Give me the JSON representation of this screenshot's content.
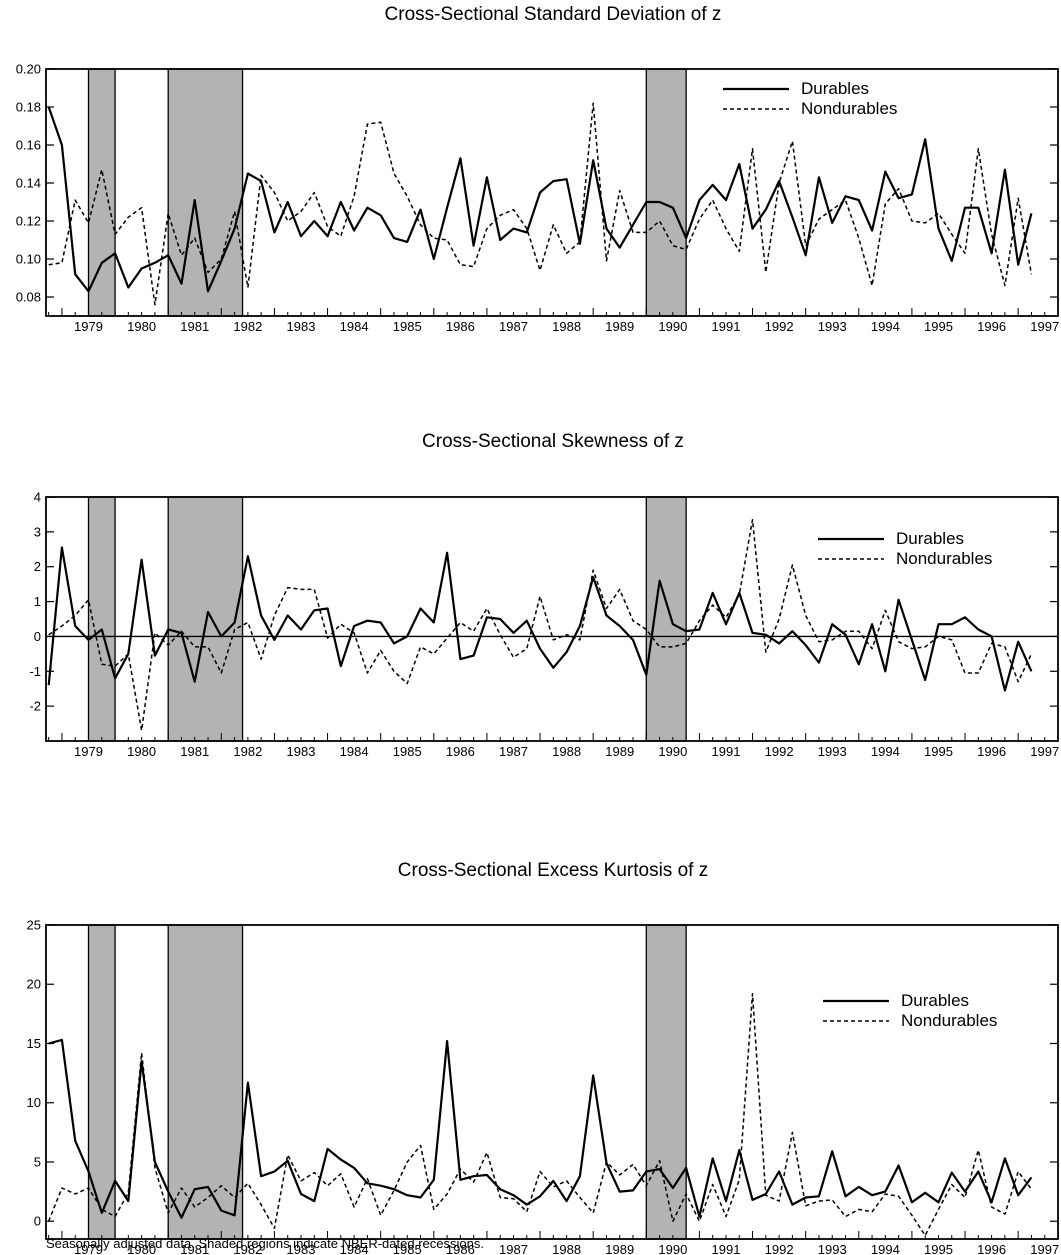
{
  "footnote": "Seasonally adjusted data. Shaded regions indicate NBER-dated recessions.",
  "chart_data": [
    {
      "type": "line",
      "title": "Cross-Sectional Standard Deviation of z",
      "xlabel": "",
      "ylabel": "",
      "xlim": [
        1978.7,
        1997.75
      ],
      "ylim": [
        0.07,
        0.2
      ],
      "yticks": [
        0.08,
        0.1,
        0.12,
        0.14,
        0.16,
        0.18,
        0.2
      ],
      "ytick_labels": [
        "0.08",
        "0.10",
        "0.12",
        "0.14",
        "0.16",
        "0.18",
        "0.20"
      ],
      "xtick_labels": [
        "1979",
        "1980",
        "1981",
        "1982",
        "1983",
        "1984",
        "1985",
        "1986",
        "1987",
        "1988",
        "1989",
        "1990",
        "1991",
        "1992",
        "1993",
        "1994",
        "1995",
        "1996",
        "1997"
      ],
      "zero_line": false,
      "legend": {
        "position": "top-right",
        "entries": [
          "Durables",
          "Nondurables"
        ]
      },
      "recessions": [
        [
          1979.5,
          1980.0
        ],
        [
          1981.0,
          1982.4
        ],
        [
          1990.0,
          1990.75
        ]
      ],
      "series": [
        {
          "name": "Durables",
          "style": "solid",
          "start": 1978.75,
          "step": 0.25,
          "values": [
            0.18,
            0.16,
            0.092,
            0.083,
            0.098,
            0.103,
            0.085,
            0.095,
            0.098,
            0.102,
            0.087,
            0.131,
            0.083,
            0.099,
            0.116,
            0.145,
            0.141,
            0.114,
            0.13,
            0.112,
            0.12,
            0.112,
            0.13,
            0.115,
            0.127,
            0.123,
            0.111,
            0.109,
            0.126,
            0.1,
            0.127,
            0.153,
            0.107,
            0.143,
            0.11,
            0.116,
            0.114,
            0.135,
            0.141,
            0.142,
            0.108,
            0.152,
            0.116,
            0.106,
            0.118,
            0.13,
            0.13,
            0.127,
            0.111,
            0.131,
            0.139,
            0.131,
            0.15,
            0.116,
            0.126,
            0.141,
            0.122,
            0.102,
            0.143,
            0.119,
            0.133,
            0.131,
            0.115,
            0.146,
            0.132,
            0.134,
            0.163,
            0.116,
            0.099,
            0.127,
            0.127,
            0.103,
            0.147,
            0.097,
            0.124
          ]
        },
        {
          "name": "Nondurables",
          "style": "dashed",
          "start": 1978.75,
          "step": 0.25,
          "values": [
            0.097,
            0.098,
            0.131,
            0.119,
            0.147,
            0.113,
            0.122,
            0.127,
            0.076,
            0.124,
            0.102,
            0.111,
            0.093,
            0.1,
            0.125,
            0.085,
            0.144,
            0.135,
            0.12,
            0.125,
            0.135,
            0.117,
            0.112,
            0.133,
            0.171,
            0.172,
            0.145,
            0.133,
            0.118,
            0.111,
            0.11,
            0.097,
            0.096,
            0.116,
            0.123,
            0.126,
            0.116,
            0.094,
            0.118,
            0.103,
            0.109,
            0.182,
            0.099,
            0.136,
            0.114,
            0.114,
            0.12,
            0.107,
            0.105,
            0.121,
            0.131,
            0.116,
            0.104,
            0.158,
            0.093,
            0.14,
            0.162,
            0.107,
            0.121,
            0.126,
            0.131,
            0.111,
            0.086,
            0.129,
            0.137,
            0.12,
            0.119,
            0.124,
            0.113,
            0.103,
            0.158,
            0.113,
            0.086,
            0.132,
            0.092
          ]
        }
      ]
    },
    {
      "type": "line",
      "title": "Cross-Sectional Skewness of z",
      "xlabel": "",
      "ylabel": "",
      "xlim": [
        1978.7,
        1997.75
      ],
      "ylim": [
        -3,
        4
      ],
      "yticks": [
        -2,
        -1,
        0,
        1,
        2,
        3,
        4
      ],
      "ytick_labels": [
        "-2",
        "-1",
        "0",
        "1",
        "2",
        "3",
        "4"
      ],
      "xtick_labels": [
        "1979",
        "1980",
        "1981",
        "1982",
        "1983",
        "1984",
        "1985",
        "1986",
        "1987",
        "1988",
        "1989",
        "1990",
        "1991",
        "1992",
        "1993",
        "1994",
        "1995",
        "1996",
        "1997"
      ],
      "zero_line": true,
      "legend": {
        "position": "top-right",
        "entries": [
          "Durables",
          "Nondurables"
        ]
      },
      "recessions": [
        [
          1979.5,
          1980.0
        ],
        [
          1981.0,
          1982.4
        ],
        [
          1990.0,
          1990.75
        ]
      ],
      "series": [
        {
          "name": "Durables",
          "style": "solid",
          "start": 1978.75,
          "step": 0.25,
          "values": [
            -1.4,
            2.55,
            0.3,
            -0.1,
            0.2,
            -1.2,
            -0.5,
            2.2,
            -0.55,
            0.2,
            0.1,
            -1.3,
            0.7,
            0.0,
            0.4,
            2.3,
            0.6,
            -0.1,
            0.6,
            0.2,
            0.75,
            0.8,
            -0.85,
            0.3,
            0.45,
            0.4,
            -0.2,
            0.0,
            0.8,
            0.4,
            2.4,
            -0.65,
            -0.55,
            0.55,
            0.5,
            0.1,
            0.45,
            -0.35,
            -0.9,
            -0.45,
            0.3,
            1.7,
            0.6,
            0.3,
            -0.1,
            -1.1,
            1.6,
            0.35,
            0.15,
            0.2,
            1.25,
            0.35,
            1.25,
            0.1,
            0.05,
            -0.2,
            0.15,
            -0.25,
            -0.75,
            0.35,
            0.05,
            -0.8,
            0.35,
            -1.0,
            1.05,
            -0.1,
            -1.25,
            0.35,
            0.35,
            0.55,
            0.2,
            0.0,
            -1.55,
            -0.15,
            -1.0
          ]
        },
        {
          "name": "Nondurables",
          "style": "dashed",
          "start": 1978.75,
          "step": 0.25,
          "values": [
            0.05,
            0.3,
            0.6,
            1.05,
            -0.8,
            -0.85,
            -0.5,
            -2.7,
            0.1,
            -0.25,
            0.15,
            -0.3,
            -0.3,
            -1.05,
            0.2,
            0.4,
            -0.65,
            0.6,
            1.4,
            1.35,
            1.35,
            -0.05,
            0.35,
            0.1,
            -1.05,
            -0.4,
            -1.0,
            -1.35,
            -0.3,
            -0.5,
            -0.05,
            0.4,
            0.15,
            0.8,
            0.05,
            -0.6,
            -0.35,
            1.15,
            -0.1,
            0.05,
            -0.1,
            1.9,
            0.8,
            1.35,
            0.45,
            0.2,
            -0.3,
            -0.3,
            -0.2,
            0.45,
            0.9,
            0.55,
            1.2,
            3.35,
            -0.45,
            0.5,
            2.05,
            0.6,
            -0.15,
            -0.1,
            0.15,
            0.15,
            -0.35,
            0.75,
            -0.15,
            -0.35,
            -0.3,
            0.0,
            -0.1,
            -1.05,
            -1.05,
            -0.2,
            -0.3,
            -1.3,
            -0.5
          ]
        }
      ]
    },
    {
      "type": "line",
      "title": "Cross-Sectional Excess Kurtosis of z",
      "xlabel": "",
      "ylabel": "",
      "xlim": [
        1978.7,
        1997.75
      ],
      "ylim": [
        -1.5,
        25
      ],
      "yticks": [
        0,
        5,
        10,
        15,
        20,
        25
      ],
      "ytick_labels": [
        "0",
        "5",
        "10",
        "15",
        "20",
        "25"
      ],
      "xtick_labels": [
        "1979",
        "1980",
        "1981",
        "1982",
        "1983",
        "1984",
        "1985",
        "1986",
        "1987",
        "1988",
        "1989",
        "1990",
        "1991",
        "1992",
        "1993",
        "1994",
        "1995",
        "1996",
        "1997"
      ],
      "zero_line": false,
      "legend": {
        "position": "top-right",
        "entries": [
          "Durables",
          "Nondurables"
        ]
      },
      "recessions": [
        [
          1979.5,
          1980.0
        ],
        [
          1981.0,
          1982.4
        ],
        [
          1990.0,
          1990.75
        ]
      ],
      "series": [
        {
          "name": "Durables",
          "style": "solid",
          "start": 1978.75,
          "step": 0.25,
          "values": [
            15.0,
            15.3,
            6.8,
            4.2,
            0.7,
            3.4,
            1.7,
            13.5,
            5.0,
            2.5,
            0.3,
            2.7,
            2.9,
            0.9,
            0.5,
            11.7,
            3.8,
            4.2,
            5.1,
            2.3,
            1.7,
            6.1,
            5.2,
            4.5,
            3.2,
            3.0,
            2.7,
            2.2,
            2.0,
            3.5,
            15.2,
            3.5,
            3.8,
            3.9,
            2.7,
            2.2,
            1.4,
            2.1,
            3.4,
            1.7,
            3.8,
            12.3,
            4.9,
            2.5,
            2.6,
            4.2,
            4.4,
            2.8,
            4.5,
            0.4,
            5.3,
            1.7,
            6.0,
            1.8,
            2.3,
            4.2,
            1.4,
            2.0,
            2.1,
            5.9,
            2.1,
            2.9,
            2.2,
            2.5,
            4.7,
            1.6,
            2.4,
            1.6,
            4.1,
            2.5,
            4.2,
            1.6,
            5.3,
            2.2,
            3.7
          ]
        },
        {
          "name": "Nondurables",
          "style": "dashed",
          "start": 1978.75,
          "step": 0.25,
          "values": [
            0.0,
            2.8,
            2.3,
            2.8,
            1.0,
            0.4,
            2.4,
            14.2,
            4.5,
            0.7,
            2.8,
            1.2,
            2.0,
            3.0,
            2.0,
            3.2,
            1.4,
            -0.6,
            5.6,
            3.4,
            4.1,
            3.0,
            4.0,
            1.2,
            3.6,
            0.5,
            2.6,
            5.0,
            6.4,
            1.0,
            2.3,
            4.4,
            3.3,
            5.8,
            2.0,
            1.9,
            0.8,
            4.2,
            2.9,
            3.4,
            2.0,
            0.7,
            5.0,
            3.9,
            4.8,
            3.0,
            5.1,
            0.0,
            2.3,
            0.0,
            3.1,
            0.4,
            3.5,
            19.2,
            2.2,
            1.7,
            7.5,
            1.3,
            1.7,
            1.8,
            0.4,
            1.0,
            0.8,
            2.3,
            2.1,
            0.5,
            -1.2,
            1.0,
            3.1,
            2.0,
            6.0,
            1.2,
            0.6,
            4.2,
            2.7
          ]
        }
      ]
    }
  ]
}
